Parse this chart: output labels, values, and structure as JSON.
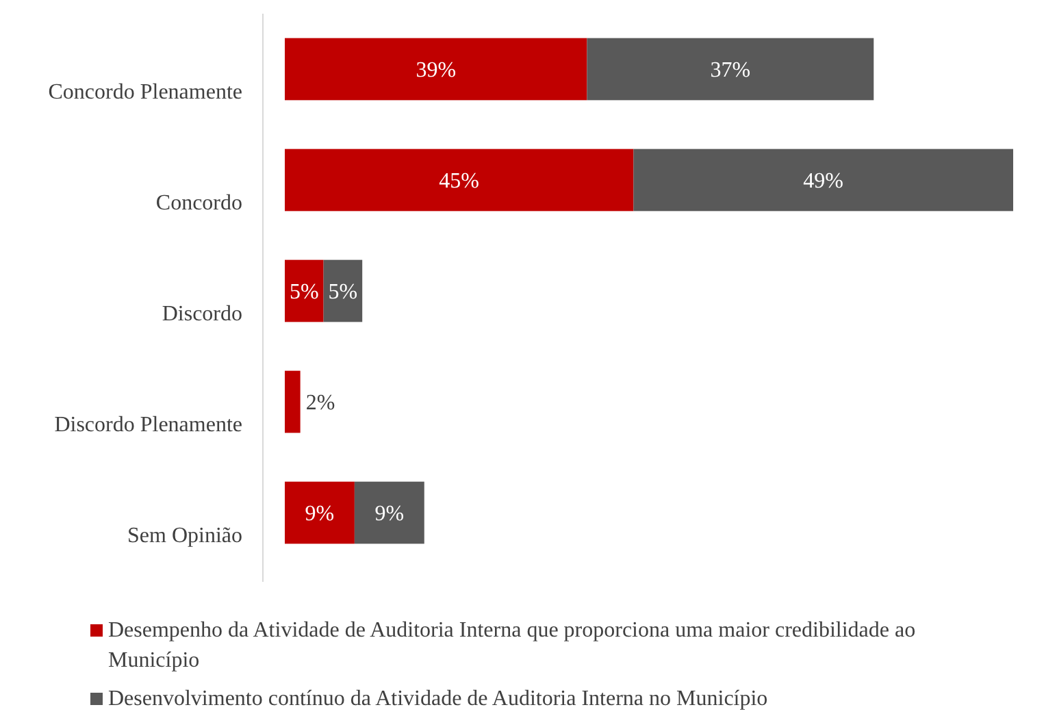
{
  "chart_data": {
    "type": "bar",
    "orientation": "horizontal",
    "stacked": true,
    "legend": "bottom",
    "categories": [
      "Concordo Plenamente",
      "Concordo",
      "Discordo",
      "Discordo Plenamente",
      "Sem Opinião"
    ],
    "series": [
      {
        "name": "Desempenho da Atividade de Auditoria Interna que proporciona uma maior credibilidade ao Município",
        "color": "#c00000",
        "values": [
          39,
          45,
          5,
          2,
          9
        ],
        "value_labels": [
          "39%",
          "45%",
          "5%",
          "2%",
          "9%"
        ]
      },
      {
        "name": "Desenvolvimento contínuo da Atividade de Auditoria Interna no Município",
        "color": "#595959",
        "values": [
          37,
          49,
          5,
          null,
          9
        ],
        "value_labels": [
          "37%",
          "49%",
          "5%",
          null,
          "9%"
        ]
      }
    ]
  }
}
